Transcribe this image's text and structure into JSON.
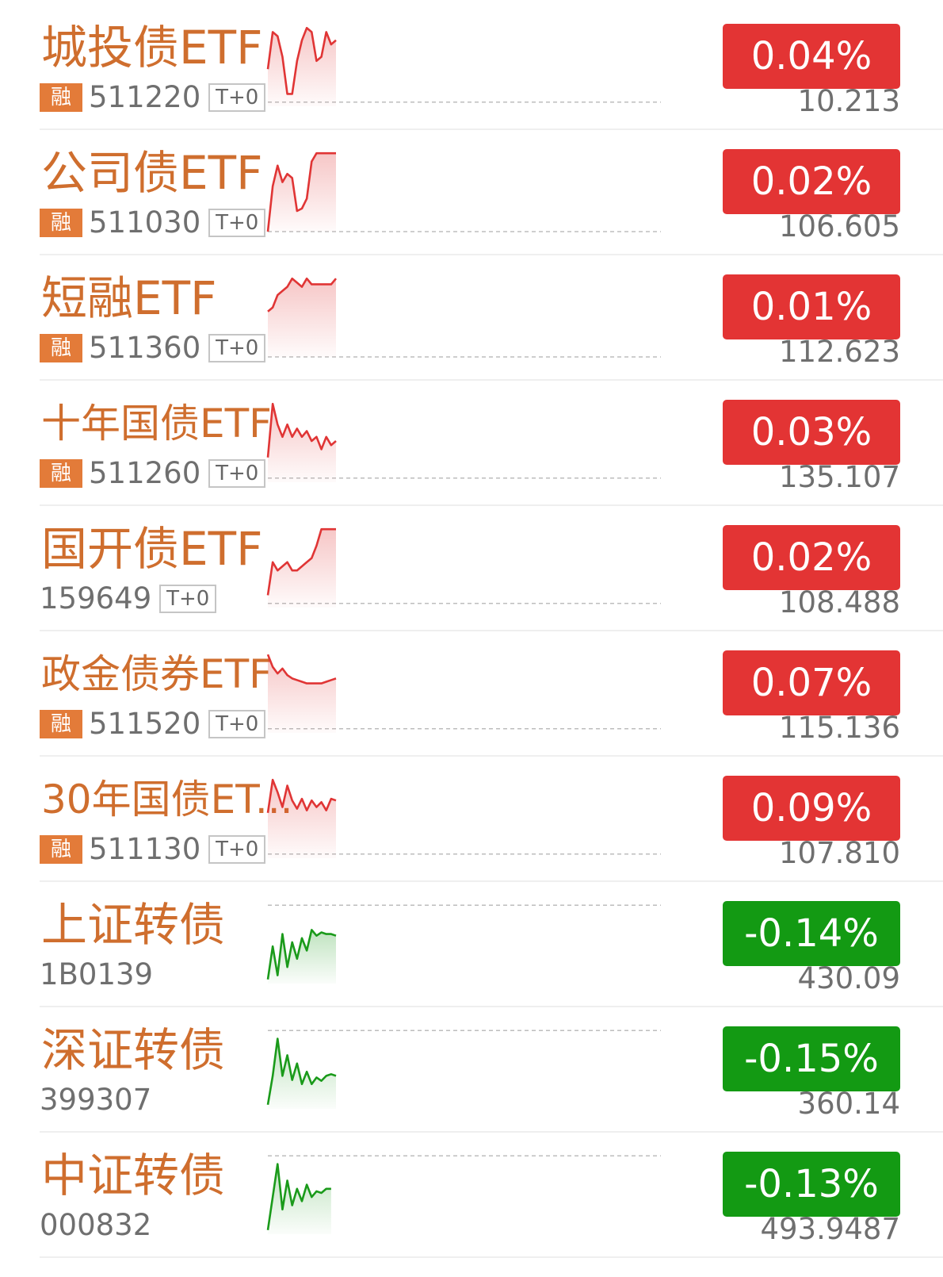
{
  "colors": {
    "name": "#cf6e2e",
    "up": "#e33434",
    "down": "#139a13",
    "up_line": "#e03535",
    "down_line": "#1a9a1a"
  },
  "rows": [
    {
      "name": "城投债ETF",
      "rong": "融",
      "code": "511220",
      "t0": "T+0",
      "change": "0.04%",
      "price": "10.213",
      "trend": "up",
      "spark": [
        0.45,
        0.9,
        0.85,
        0.6,
        0.15,
        0.15,
        0.55,
        0.8,
        0.95,
        0.9,
        0.55,
        0.6,
        0.9,
        0.75,
        0.8
      ],
      "baseline": 0.05
    },
    {
      "name": "公司债ETF",
      "rong": "融",
      "code": "511030",
      "t0": "T+0",
      "change": "0.02%",
      "price": "106.605",
      "trend": "up",
      "spark": [
        0.0,
        0.55,
        0.8,
        0.6,
        0.7,
        0.65,
        0.25,
        0.28,
        0.4,
        0.85,
        0.95,
        0.95,
        0.95,
        0.95,
        0.95
      ],
      "baseline": 0.0
    },
    {
      "name": "短融ETF",
      "rong": "融",
      "code": "511360",
      "t0": "T+0",
      "change": "0.01%",
      "price": "112.623",
      "trend": "up",
      "spark": [
        0.55,
        0.6,
        0.75,
        0.8,
        0.85,
        0.95,
        0.9,
        0.85,
        0.95,
        0.88,
        0.88,
        0.88,
        0.88,
        0.88,
        0.95
      ],
      "baseline": 0.0
    },
    {
      "name": "十年国债ETF",
      "rong": "融",
      "code": "511260",
      "t0": "T+0",
      "change": "0.03%",
      "price": "135.107",
      "trend": "up",
      "spark": [
        0.3,
        0.95,
        0.7,
        0.55,
        0.7,
        0.55,
        0.65,
        0.55,
        0.62,
        0.5,
        0.55,
        0.4,
        0.55,
        0.45,
        0.5
      ],
      "baseline": 0.05
    },
    {
      "name": "国开债ETF",
      "rong": "",
      "code": "159649",
      "t0": "T+0",
      "change": "0.02%",
      "price": "108.488",
      "trend": "up",
      "spark": [
        0.15,
        0.55,
        0.45,
        0.5,
        0.55,
        0.45,
        0.45,
        0.5,
        0.55,
        0.6,
        0.75,
        0.95,
        0.95,
        0.95,
        0.95
      ],
      "baseline": 0.05
    },
    {
      "name": "政金债券ETF",
      "rong": "融",
      "code": "511520",
      "t0": "T+0",
      "change": "0.07%",
      "price": "115.136",
      "trend": "up",
      "spark": [
        0.95,
        0.8,
        0.72,
        0.78,
        0.7,
        0.66,
        0.64,
        0.62,
        0.6,
        0.6,
        0.6,
        0.6,
        0.62,
        0.64,
        0.66
      ],
      "baseline": 0.05
    },
    {
      "name": "30年国债ET...",
      "rong": "融",
      "code": "511130",
      "t0": "T+0",
      "change": "0.09%",
      "price": "107.810",
      "trend": "up",
      "spark": [
        0.55,
        0.95,
        0.8,
        0.62,
        0.88,
        0.7,
        0.6,
        0.72,
        0.58,
        0.7,
        0.62,
        0.68,
        0.58,
        0.72,
        0.7
      ],
      "baseline": 0.05
    },
    {
      "name": "上证转债",
      "rong": "",
      "code": "1B0139",
      "t0": "",
      "change": "-0.14%",
      "price": "430.09",
      "trend": "down",
      "spark": [
        0.05,
        0.45,
        0.1,
        0.6,
        0.2,
        0.5,
        0.3,
        0.55,
        0.4,
        0.65,
        0.58,
        0.62,
        0.6,
        0.6,
        0.58
      ],
      "baseline": 0.95
    },
    {
      "name": "深证转债",
      "rong": "",
      "code": "399307",
      "t0": "",
      "change": "-0.15%",
      "price": "360.14",
      "trend": "down",
      "spark": [
        0.05,
        0.4,
        0.85,
        0.4,
        0.65,
        0.35,
        0.55,
        0.3,
        0.45,
        0.3,
        0.38,
        0.34,
        0.4,
        0.42,
        0.4
      ],
      "baseline": 0.95
    },
    {
      "name": "中证转债",
      "rong": "",
      "code": "000832",
      "t0": "",
      "change": "-0.13%",
      "price": "493.9487",
      "trend": "down",
      "spark": [
        0.05,
        0.45,
        0.85,
        0.3,
        0.65,
        0.35,
        0.55,
        0.4,
        0.6,
        0.45,
        0.52,
        0.5,
        0.55,
        0.55
      ],
      "baseline": 0.95
    }
  ]
}
